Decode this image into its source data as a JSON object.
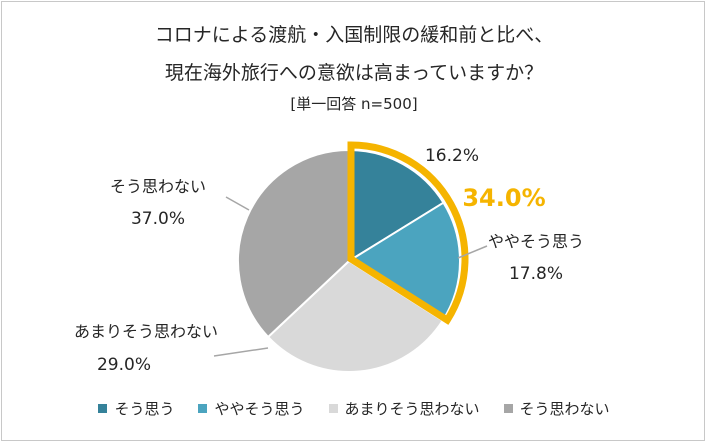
{
  "title_line1": "コロナによる渡航・入国制限の緩和前と比べ、",
  "title_line2": "現在海外旅行への意欲は高まっていますか？",
  "subtitle": "[単一回答 n=500]",
  "highlight_label": "34.0%",
  "highlight_color": "#F5B400",
  "chart_data": {
    "type": "pie",
    "title": "コロナによる渡航・入国制限の緩和前と比べ、現在海外旅行への意欲は高まっていますか？",
    "subtitle": "[単一回答 n=500]",
    "unit": "%",
    "legend_position": "bottom",
    "slices": [
      {
        "label": "そう思う",
        "value": 16.2,
        "value_label": "16.2%",
        "color": "#35829A"
      },
      {
        "label": "ややそう思う",
        "value": 17.8,
        "value_label": "17.8%",
        "color": "#4BA4BF"
      },
      {
        "label": "あまりそう思わない",
        "value": 29.0,
        "value_label": "29.0%",
        "color": "#D9D9D9"
      },
      {
        "label": "そう思わない",
        "value": 37.0,
        "value_label": "37.0%",
        "color": "#A6A6A6"
      }
    ]
  }
}
